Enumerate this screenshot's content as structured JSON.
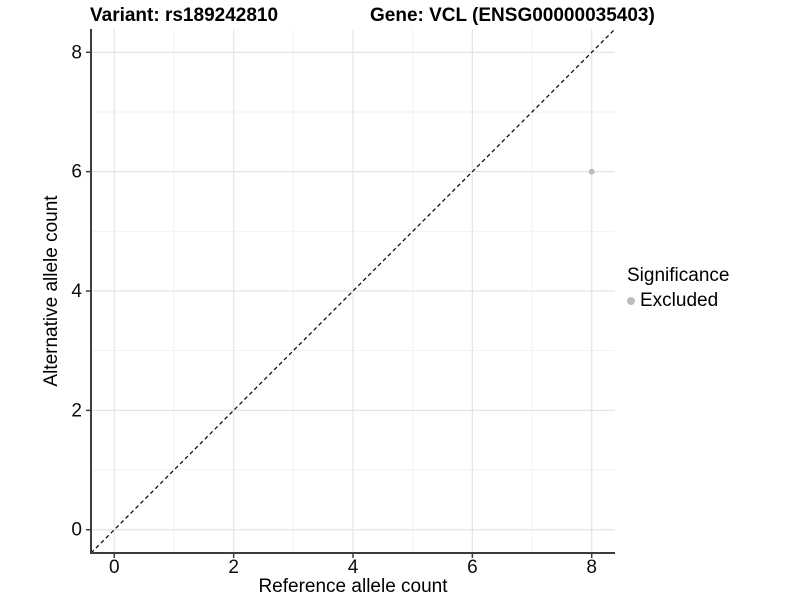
{
  "chart_data": {
    "type": "scatter",
    "title_left": "Variant: rs189242810",
    "title_right": "Gene: VCL (ENSG00000035403)",
    "xlabel": "Reference allele count",
    "ylabel": "Alternative allele count",
    "xlim": [
      -0.39,
      8.39
    ],
    "ylim": [
      -0.39,
      8.39
    ],
    "x_major_ticks": [
      0,
      2,
      4,
      6,
      8
    ],
    "x_minor_ticks": [
      1,
      3,
      5,
      7
    ],
    "y_major_ticks": [
      0,
      2,
      4,
      6,
      8
    ],
    "y_minor_ticks": [
      1,
      3,
      5,
      7
    ],
    "grid": true,
    "points": [
      {
        "x": 8,
        "y": 6,
        "significance": "Excluded"
      }
    ],
    "identity_line": {
      "style": "dashed",
      "slope": 1,
      "intercept": 0
    },
    "legend": {
      "title": "Significance",
      "position": "right",
      "entries": [
        {
          "label": "Excluded",
          "color": "#bdbdbd"
        }
      ]
    },
    "colors": {
      "background": "#ffffff",
      "grid_major": "#e4e4e4",
      "grid_minor": "#f2f2f2",
      "axis_line": "#3c3c3c",
      "tick_text": "#0d0d0d",
      "identity_line": "#000000",
      "point_excluded": "#bdbdbd"
    }
  }
}
